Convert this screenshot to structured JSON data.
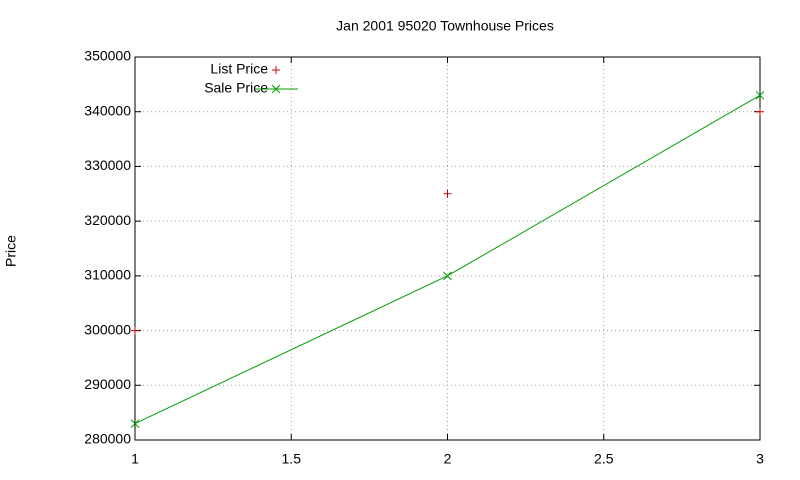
{
  "chart_data": {
    "type": "line",
    "title": "Jan 2001 95020 Townhouse Prices",
    "y_label": "Price",
    "x": [
      1,
      2,
      3
    ],
    "series": [
      {
        "name": "List Price",
        "color": "#d00000",
        "style": "points",
        "marker": "plus",
        "values": [
          300000,
          325000,
          340000
        ]
      },
      {
        "name": "Sale Price",
        "color": "#00a000",
        "style": "linespoints",
        "marker": "cross",
        "values": [
          283000,
          310000,
          343000
        ]
      }
    ],
    "xlim": [
      1,
      3
    ],
    "xticks": [
      1,
      1.5,
      2,
      2.5,
      3
    ],
    "ylim": [
      280000,
      350000
    ],
    "yticks": [
      280000,
      290000,
      300000,
      310000,
      320000,
      330000,
      340000,
      350000
    ],
    "grid": true,
    "legend": "top left"
  }
}
